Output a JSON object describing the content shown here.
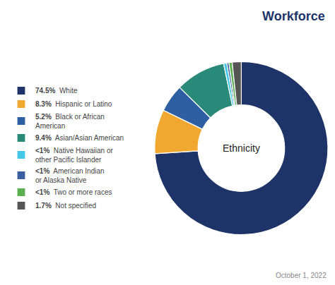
{
  "chart_data": {
    "type": "pie",
    "title": "Workforce",
    "annotations": [
      "Ethnicity",
      "October 1, 2022"
    ],
    "categories": [
      "White",
      "Hispanic or Latino",
      "Black or African\nAmerican",
      "Asian/Asian American",
      "Native Hawaiian or\nother Pacific Islander",
      "American Indian\nor Alaska Native",
      "Two or more races",
      "Not specified"
    ],
    "values": [
      74.5,
      8.3,
      5.2,
      9.4,
      0.6,
      0.4,
      0.6,
      1.7
    ],
    "value_labels": [
      "74.5%",
      "8.3%",
      "5.2%",
      "9.4%",
      "<1%",
      "<1%",
      "<1%",
      "1.7%"
    ],
    "colors": [
      "#1e3468",
      "#f0a830",
      "#2e5fa3",
      "#2a8a7a",
      "#44c8e8",
      "#3a5fa0",
      "#5ab04e",
      "#555555"
    ]
  }
}
